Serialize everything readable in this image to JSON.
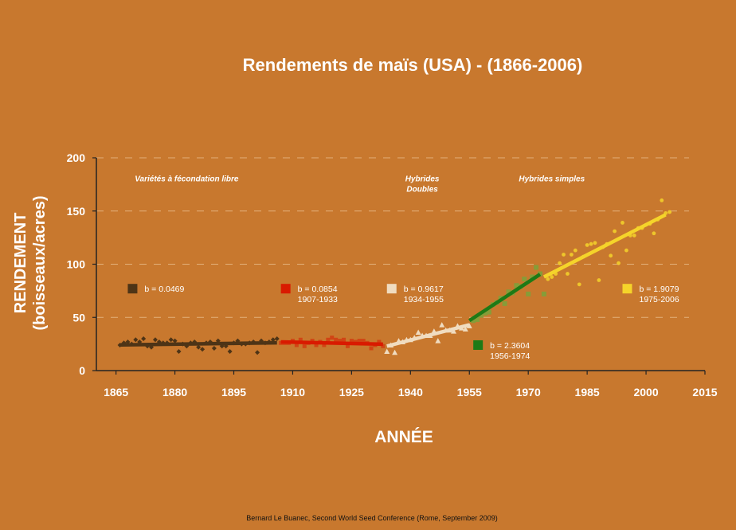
{
  "chart_data": {
    "type": "scatter",
    "title": "Rendements de maïs (USA) - (1866-2006)",
    "xlabel": "ANNÉE",
    "ylabel": [
      "RENDEMENT",
      "(boisseaux/acres)"
    ],
    "xlim": [
      1860,
      2015
    ],
    "ylim": [
      0,
      200
    ],
    "xticks": [
      1865,
      1880,
      1895,
      1910,
      1925,
      1940,
      1955,
      1970,
      1985,
      2000,
      2015
    ],
    "yticks": [
      0,
      50,
      100,
      150,
      200
    ],
    "grid": "horizontal dashed",
    "colors": {
      "background": "#c8782e",
      "axis": "#222222",
      "grid": "#e2b07a"
    },
    "regions": [
      {
        "label": [
          "Variétés à fécondation libre"
        ],
        "x": 1883,
        "y": 178
      },
      {
        "label": [
          "Hybrides",
          "Doubles"
        ],
        "x": 1943,
        "y": 178
      },
      {
        "label": [
          "Hybrides simples"
        ],
        "x": 1976,
        "y": 178
      }
    ],
    "series": [
      {
        "label": "b = 0.0469",
        "period": "",
        "color": "#4e3416",
        "marker": "diamond",
        "legend_x": 1868,
        "legend_y": 77,
        "line": [
          [
            1866,
            24.2
          ],
          [
            1906,
            26.1
          ]
        ],
        "points": [
          [
            1866,
            24
          ],
          [
            1867,
            26
          ],
          [
            1868,
            27
          ],
          [
            1869,
            25
          ],
          [
            1870,
            29
          ],
          [
            1871,
            27
          ],
          [
            1872,
            30
          ],
          [
            1873,
            23
          ],
          [
            1874,
            22
          ],
          [
            1875,
            29
          ],
          [
            1876,
            27
          ],
          [
            1877,
            26
          ],
          [
            1878,
            26
          ],
          [
            1879,
            29
          ],
          [
            1880,
            28
          ],
          [
            1881,
            18
          ],
          [
            1882,
            25
          ],
          [
            1883,
            23
          ],
          [
            1884,
            26
          ],
          [
            1885,
            27
          ],
          [
            1886,
            22
          ],
          [
            1887,
            20
          ],
          [
            1888,
            26
          ],
          [
            1889,
            27
          ],
          [
            1890,
            21
          ],
          [
            1891,
            28
          ],
          [
            1892,
            23
          ],
          [
            1893,
            23
          ],
          [
            1894,
            18
          ],
          [
            1895,
            26
          ],
          [
            1896,
            28
          ],
          [
            1897,
            25
          ],
          [
            1898,
            25
          ],
          [
            1899,
            26
          ],
          [
            1900,
            27
          ],
          [
            1901,
            17
          ],
          [
            1902,
            28
          ],
          [
            1903,
            26
          ],
          [
            1904,
            27
          ],
          [
            1905,
            29
          ],
          [
            1906,
            30
          ]
        ]
      },
      {
        "label": "b = 0.0854",
        "period": "1907-1933",
        "color": "#d91a00",
        "marker": "square",
        "legend_x": 1907,
        "legend_y": 77,
        "line": [
          [
            1907,
            27
          ],
          [
            1933,
            24.8
          ]
        ],
        "points": [
          [
            1907,
            26
          ],
          [
            1908,
            26
          ],
          [
            1909,
            26
          ],
          [
            1910,
            28
          ],
          [
            1911,
            24
          ],
          [
            1912,
            29
          ],
          [
            1913,
            23
          ],
          [
            1914,
            26
          ],
          [
            1915,
            28
          ],
          [
            1916,
            24
          ],
          [
            1917,
            27
          ],
          [
            1918,
            24
          ],
          [
            1919,
            29
          ],
          [
            1920,
            31
          ],
          [
            1921,
            29
          ],
          [
            1922,
            28
          ],
          [
            1923,
            29
          ],
          [
            1924,
            23
          ],
          [
            1925,
            28
          ],
          [
            1926,
            27
          ],
          [
            1927,
            28
          ],
          [
            1928,
            28
          ],
          [
            1929,
            26
          ],
          [
            1930,
            21
          ],
          [
            1931,
            24
          ],
          [
            1932,
            27
          ],
          [
            1933,
            23
          ]
        ]
      },
      {
        "label": "b = 0.9617",
        "period": "1934-1955",
        "color": "#f0dcc0",
        "marker": "triangle",
        "legend_x": 1934,
        "legend_y": 77,
        "line": [
          [
            1934,
            23
          ],
          [
            1955,
            43
          ]
        ],
        "points": [
          [
            1934,
            18
          ],
          [
            1935,
            24
          ],
          [
            1936,
            17
          ],
          [
            1937,
            28
          ],
          [
            1938,
            27
          ],
          [
            1939,
            29
          ],
          [
            1940,
            29
          ],
          [
            1941,
            31
          ],
          [
            1942,
            36
          ],
          [
            1943,
            33
          ],
          [
            1944,
            33
          ],
          [
            1945,
            33
          ],
          [
            1946,
            37
          ],
          [
            1947,
            28
          ],
          [
            1948,
            43
          ],
          [
            1949,
            38
          ],
          [
            1950,
            38
          ],
          [
            1951,
            37
          ],
          [
            1952,
            42
          ],
          [
            1953,
            40
          ],
          [
            1954,
            39
          ],
          [
            1955,
            42
          ]
        ]
      },
      {
        "label": "b = 2.3604",
        "period": "1956-1974",
        "color": "#1e7a16",
        "marker": "x",
        "legend_x": 1956,
        "legend_y": 24,
        "line": [
          [
            1955,
            47
          ],
          [
            1973,
            90.5
          ]
        ],
        "points": [
          [
            1956,
            47
          ],
          [
            1957,
            48
          ],
          [
            1958,
            52
          ],
          [
            1959,
            54
          ],
          [
            1960,
            55
          ],
          [
            1961,
            62
          ],
          [
            1962,
            64
          ],
          [
            1963,
            68
          ],
          [
            1964,
            63
          ],
          [
            1965,
            74
          ],
          [
            1966,
            73
          ],
          [
            1967,
            80
          ],
          [
            1968,
            79
          ],
          [
            1969,
            86
          ],
          [
            1970,
            72
          ],
          [
            1971,
            88
          ],
          [
            1972,
            97
          ],
          [
            1973,
            91
          ],
          [
            1974,
            72
          ]
        ]
      },
      {
        "label": "b = 1.9079",
        "period": "1975-2006",
        "color": "#f5d42a",
        "marker": "circle",
        "legend_x": 1994,
        "legend_y": 77,
        "line": [
          [
            1974,
            88
          ],
          [
            2005,
            146.5
          ]
        ],
        "points": [
          [
            1975,
            86
          ],
          [
            1976,
            88
          ],
          [
            1977,
            91
          ],
          [
            1978,
            101
          ],
          [
            1979,
            109
          ],
          [
            1980,
            91
          ],
          [
            1981,
            109
          ],
          [
            1982,
            113
          ],
          [
            1983,
            81
          ],
          [
            1984,
            107
          ],
          [
            1985,
            118
          ],
          [
            1986,
            119
          ],
          [
            1987,
            120
          ],
          [
            1988,
            85
          ],
          [
            1989,
            116
          ],
          [
            1990,
            119
          ],
          [
            1991,
            108
          ],
          [
            1992,
            131
          ],
          [
            1993,
            101
          ],
          [
            1994,
            139
          ],
          [
            1995,
            113
          ],
          [
            1996,
            127
          ],
          [
            1997,
            127
          ],
          [
            1998,
            134
          ],
          [
            1999,
            134
          ],
          [
            2000,
            137
          ],
          [
            2001,
            138
          ],
          [
            2002,
            129
          ],
          [
            2003,
            142
          ],
          [
            2004,
            160
          ],
          [
            2005,
            148
          ],
          [
            2006,
            149
          ]
        ]
      }
    ]
  },
  "credit": "Bernard Le Buanec, Second World Seed Conference (Rome, September 2009)"
}
